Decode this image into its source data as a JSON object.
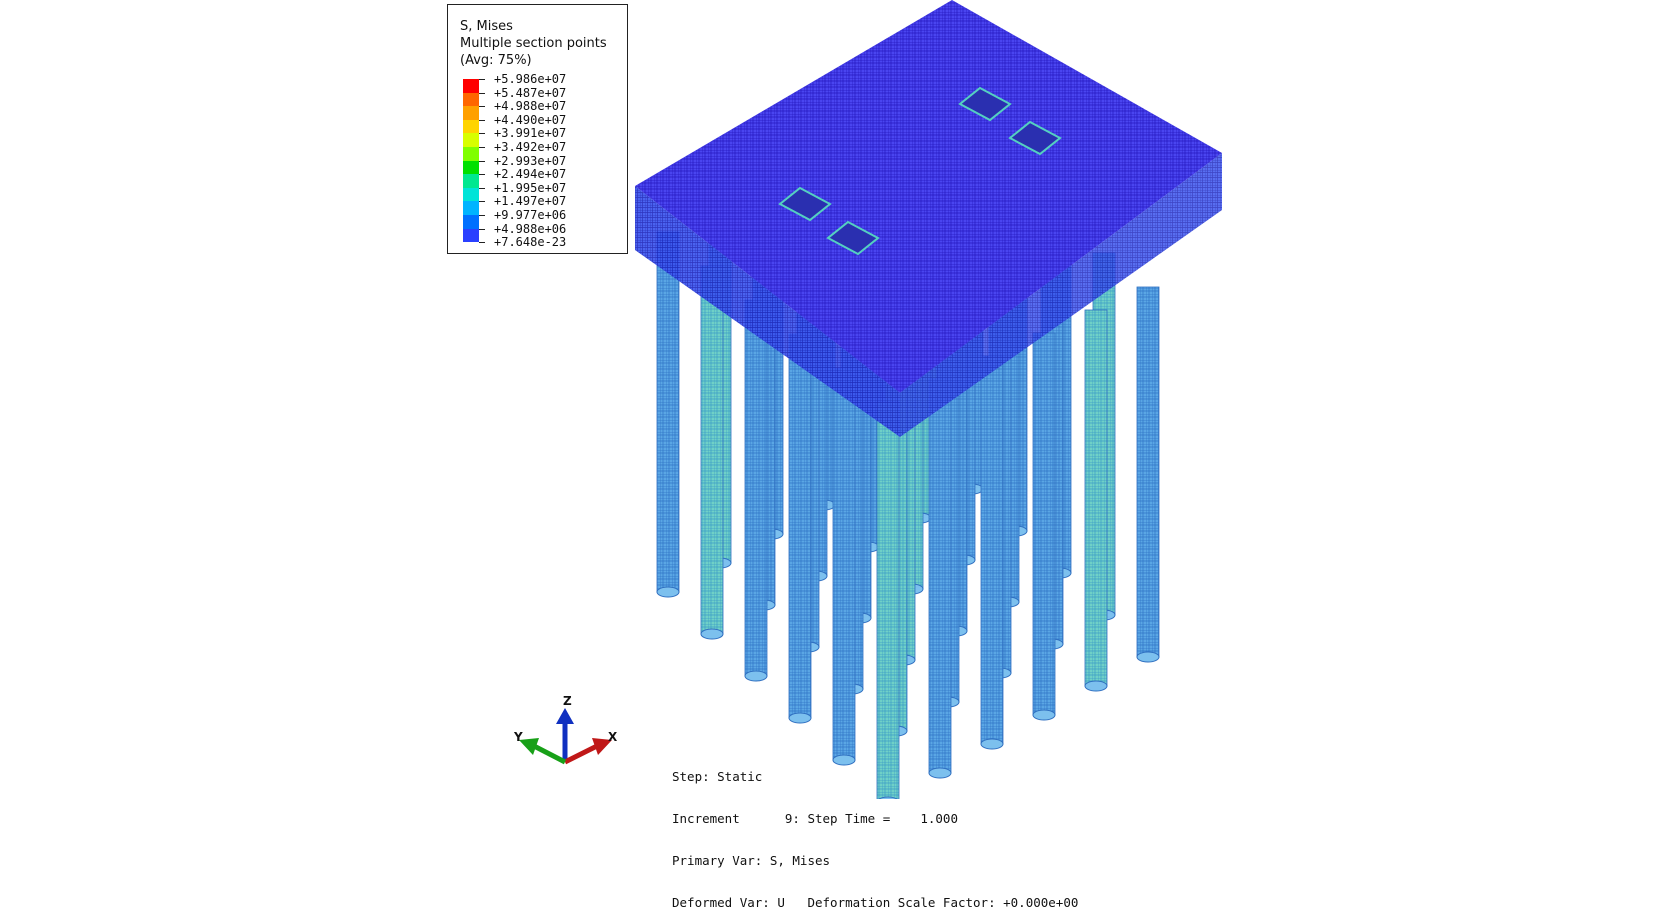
{
  "legend": {
    "variable": "S, Mises",
    "section_points": "Multiple section points",
    "averaging": "(Avg: 75%)",
    "values": [
      "+5.986e+07",
      "+5.487e+07",
      "+4.988e+07",
      "+4.490e+07",
      "+3.991e+07",
      "+3.492e+07",
      "+2.993e+07",
      "+2.494e+07",
      "+1.995e+07",
      "+1.497e+07",
      "+9.977e+06",
      "+4.988e+06",
      "+7.648e-23"
    ],
    "colors": [
      "#ff0000",
      "#ff6600",
      "#ffa000",
      "#ffd400",
      "#d8ff00",
      "#80ff00",
      "#00e000",
      "#00e890",
      "#00e4d8",
      "#00b4ff",
      "#0070ff",
      "#2a40ff",
      "#0000ff"
    ]
  },
  "triad": {
    "z_label": "Z",
    "y_label": "Y",
    "x_label": "X",
    "colors": {
      "x": "#c01818",
      "y": "#18a018",
      "z": "#1030c0"
    }
  },
  "info": {
    "step": "Step: Static",
    "increment": "Increment      9: Step Time =    1.000",
    "primary_var": "Primary Var: S, Mises",
    "deformed_var": "Deformed Var: U   Deformation Scale Factor: +0.000e+00"
  },
  "model": {
    "cap_color": "#3b34e8",
    "pile_color": "#4a9adf",
    "pile_highlight": "#55d0c0"
  }
}
